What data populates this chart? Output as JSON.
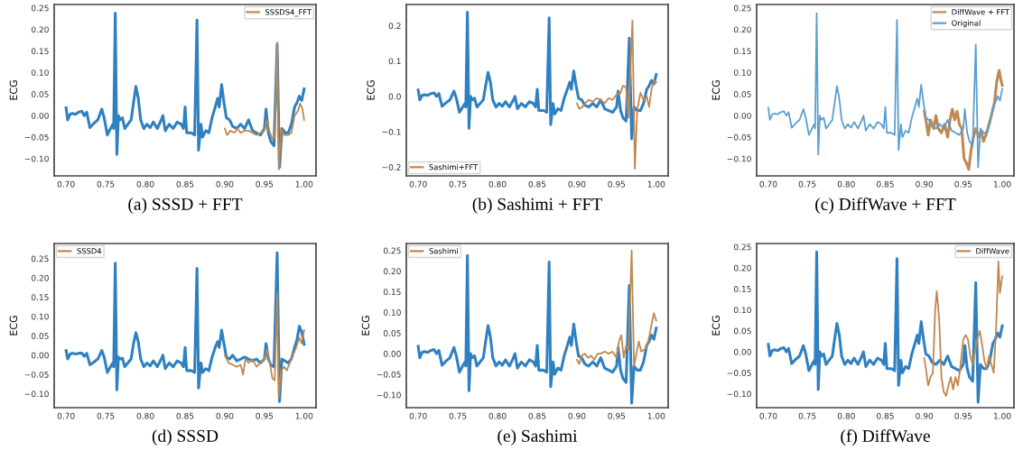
{
  "chart_data": [
    {
      "type": "line",
      "ylabel": "ECG",
      "annotations": [
        "(a) SSSD + FFT"
      ],
      "xlim": [
        0.685,
        1.015
      ],
      "ylim": [
        -0.14,
        0.258
      ],
      "xticks": [
        {
          "value": 0.7,
          "label": "0.70"
        },
        {
          "value": 0.75,
          "label": "0.75"
        },
        {
          "value": 0.8,
          "label": "0.80"
        },
        {
          "value": 0.85,
          "label": "0.85"
        },
        {
          "value": 0.9,
          "label": "0.90"
        },
        {
          "value": 0.95,
          "label": "0.95"
        },
        {
          "value": 1.0,
          "label": "1.00"
        }
      ],
      "yticks": [
        {
          "value": -0.1,
          "label": "−0.10"
        },
        {
          "value": -0.05,
          "label": "−0.05"
        },
        {
          "value": 0.0,
          "label": "0.00"
        },
        {
          "value": 0.05,
          "label": "0.05"
        },
        {
          "value": 0.1,
          "label": "0.10"
        },
        {
          "value": 0.15,
          "label": "0.15"
        },
        {
          "value": 0.2,
          "label": "0.20"
        },
        {
          "value": 0.25,
          "label": "0.25"
        }
      ],
      "grid": false,
      "legend": "top right",
      "series": [
        {
          "color": "#2f80c0",
          "x": [
            0.7,
            0.702,
            0.705,
            0.708,
            0.712,
            0.716,
            0.72,
            0.723,
            0.726,
            0.73,
            0.735,
            0.74,
            0.745,
            0.748,
            0.752,
            0.756,
            0.759,
            0.76,
            0.762,
            0.764,
            0.766,
            0.768,
            0.771,
            0.774,
            0.778,
            0.782,
            0.785,
            0.788,
            0.791,
            0.794,
            0.798,
            0.802,
            0.806,
            0.81,
            0.815,
            0.82,
            0.822,
            0.825,
            0.83,
            0.835,
            0.84,
            0.845,
            0.848,
            0.85,
            0.852,
            0.858,
            0.862,
            0.865,
            0.867,
            0.87,
            0.872,
            0.876,
            0.88,
            0.884,
            0.888,
            0.891,
            0.893,
            0.896,
            0.899,
            0.902,
            0.906,
            0.91,
            0.915,
            0.92,
            0.925,
            0.93,
            0.935,
            0.94,
            0.945,
            0.95,
            0.952,
            0.955,
            0.958,
            0.962,
            0.966,
            0.969,
            0.972,
            0.976,
            0.98,
            0.984,
            0.988,
            0.991,
            0.994,
            0.997,
            1.0
          ],
          "values": [
            0.018,
            -0.01,
            0.003,
            0.005,
            0.003,
            0.008,
            0.01,
            0.0,
            0.008,
            -0.028,
            -0.018,
            -0.01,
            0.015,
            -0.005,
            -0.045,
            -0.03,
            -0.02,
            -0.03,
            0.238,
            -0.09,
            0.0,
            -0.01,
            -0.005,
            -0.03,
            -0.02,
            -0.01,
            0.03,
            0.068,
            0.04,
            -0.01,
            -0.03,
            -0.02,
            -0.028,
            -0.015,
            -0.03,
            -0.01,
            0.0,
            -0.035,
            -0.02,
            -0.03,
            -0.015,
            -0.02,
            -0.03,
            0.02,
            -0.04,
            -0.04,
            -0.045,
            0.222,
            -0.08,
            -0.02,
            -0.05,
            -0.035,
            -0.04,
            -0.005,
            0.02,
            0.04,
            0.02,
            0.072,
            0.03,
            -0.005,
            -0.01,
            -0.025,
            -0.03,
            -0.02,
            -0.03,
            -0.01,
            -0.035,
            -0.04,
            -0.045,
            -0.03,
            0.015,
            -0.04,
            -0.06,
            -0.07,
            0.165,
            -0.12,
            -0.03,
            -0.04,
            -0.04,
            -0.02,
            0.02,
            0.03,
            0.045,
            0.035,
            0.062
          ]
        },
        {
          "name": "SSSDS4_FFT",
          "color": "#c0874e",
          "x": [
            0.9,
            0.903,
            0.907,
            0.912,
            0.916,
            0.92,
            0.925,
            0.93,
            0.935,
            0.94,
            0.945,
            0.95,
            0.953,
            0.956,
            0.96,
            0.963,
            0.966,
            0.968,
            0.971,
            0.975,
            0.98,
            0.984,
            0.988,
            0.992,
            0.995,
            0.998,
            1.0
          ],
          "values": [
            -0.03,
            -0.045,
            -0.035,
            -0.04,
            -0.03,
            -0.04,
            -0.035,
            -0.035,
            -0.04,
            -0.045,
            -0.04,
            -0.035,
            -0.01,
            -0.035,
            -0.055,
            -0.05,
            0.17,
            -0.125,
            -0.03,
            -0.045,
            -0.045,
            -0.04,
            0.0,
            0.01,
            0.028,
            0.015,
            -0.01
          ]
        }
      ]
    },
    {
      "type": "line",
      "ylabel": "ECG",
      "annotations": [
        "(b) Sashimi + FFT"
      ],
      "xlim": [
        0.685,
        1.015
      ],
      "ylim": [
        -0.225,
        0.26
      ],
      "xticks": [
        {
          "value": 0.7,
          "label": "0.70"
        },
        {
          "value": 0.75,
          "label": "0.75"
        },
        {
          "value": 0.8,
          "label": "0.80"
        },
        {
          "value": 0.85,
          "label": "0.85"
        },
        {
          "value": 0.9,
          "label": "0.90"
        },
        {
          "value": 0.95,
          "label": "0.95"
        },
        {
          "value": 1.0,
          "label": "1.00"
        }
      ],
      "yticks": [
        {
          "value": -0.2,
          "label": "−0.2"
        },
        {
          "value": -0.1,
          "label": "−0.1"
        },
        {
          "value": 0.0,
          "label": "0.0"
        },
        {
          "value": 0.1,
          "label": "0.1"
        },
        {
          "value": 0.2,
          "label": "0.2"
        }
      ],
      "grid": false,
      "legend": "bottom left",
      "series": [
        {
          "color": "#2f80c0",
          "x": [
            0.7,
            0.702,
            0.705,
            0.708,
            0.712,
            0.716,
            0.72,
            0.723,
            0.726,
            0.73,
            0.735,
            0.74,
            0.745,
            0.748,
            0.752,
            0.756,
            0.759,
            0.76,
            0.762,
            0.764,
            0.766,
            0.768,
            0.771,
            0.774,
            0.778,
            0.782,
            0.785,
            0.788,
            0.791,
            0.794,
            0.798,
            0.802,
            0.806,
            0.81,
            0.815,
            0.82,
            0.822,
            0.825,
            0.83,
            0.835,
            0.84,
            0.845,
            0.848,
            0.85,
            0.852,
            0.858,
            0.862,
            0.865,
            0.867,
            0.87,
            0.872,
            0.876,
            0.88,
            0.884,
            0.888,
            0.891,
            0.893,
            0.896,
            0.899,
            0.902,
            0.906,
            0.91,
            0.915,
            0.92,
            0.925,
            0.93,
            0.935,
            0.94,
            0.945,
            0.95,
            0.952,
            0.955,
            0.958,
            0.962,
            0.966,
            0.969,
            0.972,
            0.976,
            0.98,
            0.984,
            0.988,
            0.991,
            0.994,
            0.997,
            1.0
          ],
          "values": [
            0.018,
            -0.01,
            0.003,
            0.005,
            0.003,
            0.008,
            0.01,
            0.0,
            0.008,
            -0.028,
            -0.018,
            -0.01,
            0.015,
            -0.005,
            -0.045,
            -0.03,
            -0.02,
            -0.03,
            0.238,
            -0.09,
            0.0,
            -0.01,
            -0.005,
            -0.03,
            -0.02,
            -0.01,
            0.03,
            0.068,
            0.04,
            -0.01,
            -0.03,
            -0.02,
            -0.028,
            -0.015,
            -0.03,
            -0.01,
            0.0,
            -0.035,
            -0.02,
            -0.03,
            -0.015,
            -0.02,
            -0.03,
            0.02,
            -0.04,
            -0.04,
            -0.045,
            0.222,
            -0.08,
            -0.02,
            -0.05,
            -0.035,
            -0.04,
            -0.005,
            0.02,
            0.04,
            0.02,
            0.072,
            0.03,
            -0.005,
            -0.01,
            -0.025,
            -0.03,
            -0.02,
            -0.03,
            -0.01,
            -0.035,
            -0.04,
            -0.045,
            -0.03,
            0.015,
            -0.04,
            -0.06,
            -0.07,
            0.165,
            -0.12,
            -0.03,
            -0.04,
            -0.04,
            -0.02,
            0.02,
            0.03,
            0.045,
            0.035,
            0.062
          ]
        },
        {
          "name": "Sashimi+FFT",
          "color": "#c0874e",
          "x": [
            0.9,
            0.903,
            0.907,
            0.91,
            0.915,
            0.92,
            0.925,
            0.93,
            0.935,
            0.94,
            0.945,
            0.95,
            0.955,
            0.958,
            0.962,
            0.965,
            0.97,
            0.973,
            0.976,
            0.98,
            0.984,
            0.988,
            0.991,
            0.994,
            0.997,
            1.0
          ],
          "values": [
            -0.02,
            -0.035,
            -0.03,
            -0.02,
            -0.01,
            -0.015,
            -0.005,
            -0.01,
            -0.02,
            -0.005,
            -0.01,
            0.005,
            0.01,
            0.03,
            0.025,
            -0.06,
            0.215,
            -0.205,
            -0.04,
            0.01,
            -0.01,
            0.0,
            -0.03,
            0.02,
            0.045,
            0.04
          ]
        }
      ]
    },
    {
      "type": "line",
      "ylabel": "ECG",
      "annotations": [
        "(c) DiffWave + FFT"
      ],
      "xlim": [
        0.685,
        1.015
      ],
      "ylim": [
        -0.14,
        0.258
      ],
      "xticks": [
        {
          "value": 0.7,
          "label": "0.70"
        },
        {
          "value": 0.75,
          "label": "0.75"
        },
        {
          "value": 0.8,
          "label": "0.80"
        },
        {
          "value": 0.85,
          "label": "0.85"
        },
        {
          "value": 0.9,
          "label": "0.90"
        },
        {
          "value": 0.95,
          "label": "0.95"
        },
        {
          "value": 1.0,
          "label": "1.00"
        }
      ],
      "yticks": [
        {
          "value": -0.1,
          "label": "−0.10"
        },
        {
          "value": -0.05,
          "label": "−0.05"
        },
        {
          "value": 0.0,
          "label": "0.00"
        },
        {
          "value": 0.05,
          "label": "0.05"
        },
        {
          "value": 0.1,
          "label": "0.10"
        },
        {
          "value": 0.15,
          "label": "0.15"
        },
        {
          "value": 0.2,
          "label": "0.20"
        },
        {
          "value": 0.25,
          "label": "0.25"
        }
      ],
      "grid": false,
      "legend": "top right",
      "series": [
        {
          "name": "DiffWave + FFT",
          "color": "#c0874e",
          "x": [
            0.9,
            0.903,
            0.905,
            0.908,
            0.912,
            0.915,
            0.918,
            0.922,
            0.926,
            0.93,
            0.933,
            0.936,
            0.939,
            0.942,
            0.945,
            0.948,
            0.951,
            0.954,
            0.957,
            0.96,
            0.963,
            0.966,
            0.97,
            0.973,
            0.976,
            0.98,
            0.983,
            0.986,
            0.99,
            0.993,
            0.996,
            0.998,
            1.0
          ],
          "values": [
            0.01,
            -0.02,
            -0.045,
            -0.01,
            -0.03,
            0.0,
            -0.03,
            -0.04,
            -0.02,
            -0.05,
            -0.01,
            0.015,
            -0.01,
            0.01,
            -0.02,
            -0.03,
            -0.1,
            -0.11,
            -0.125,
            -0.08,
            -0.05,
            -0.03,
            -0.05,
            -0.035,
            -0.06,
            -0.04,
            -0.02,
            0.0,
            0.03,
            0.08,
            0.105,
            0.085,
            0.07
          ]
        },
        {
          "name": "Original",
          "color": "#5a9fd0",
          "x": [
            0.7,
            0.702,
            0.705,
            0.708,
            0.712,
            0.716,
            0.72,
            0.723,
            0.726,
            0.73,
            0.735,
            0.74,
            0.745,
            0.748,
            0.752,
            0.756,
            0.759,
            0.76,
            0.762,
            0.764,
            0.766,
            0.768,
            0.771,
            0.774,
            0.778,
            0.782,
            0.785,
            0.788,
            0.791,
            0.794,
            0.798,
            0.802,
            0.806,
            0.81,
            0.815,
            0.82,
            0.822,
            0.825,
            0.83,
            0.835,
            0.84,
            0.845,
            0.848,
            0.85,
            0.852,
            0.858,
            0.862,
            0.865,
            0.867,
            0.87,
            0.872,
            0.876,
            0.88,
            0.884,
            0.888,
            0.891,
            0.893,
            0.896,
            0.899,
            0.902,
            0.906,
            0.91,
            0.915,
            0.92,
            0.925,
            0.93,
            0.935,
            0.94,
            0.945,
            0.95,
            0.952,
            0.955,
            0.958,
            0.962,
            0.966,
            0.969,
            0.972,
            0.976,
            0.98,
            0.984,
            0.988,
            0.991,
            0.994,
            0.997,
            1.0
          ],
          "values": [
            0.018,
            -0.01,
            0.003,
            0.005,
            0.003,
            0.008,
            0.01,
            0.0,
            0.008,
            -0.028,
            -0.018,
            -0.01,
            0.015,
            -0.005,
            -0.045,
            -0.03,
            -0.02,
            -0.03,
            0.238,
            -0.09,
            0.0,
            -0.01,
            -0.005,
            -0.03,
            -0.02,
            -0.01,
            0.03,
            0.068,
            0.04,
            -0.01,
            -0.03,
            -0.02,
            -0.028,
            -0.015,
            -0.03,
            -0.01,
            0.0,
            -0.035,
            -0.02,
            -0.03,
            -0.015,
            -0.02,
            -0.03,
            0.02,
            -0.04,
            -0.04,
            -0.045,
            0.222,
            -0.08,
            -0.02,
            -0.05,
            -0.035,
            -0.04,
            -0.005,
            0.02,
            0.04,
            0.02,
            0.072,
            0.03,
            -0.005,
            -0.01,
            -0.025,
            -0.03,
            -0.02,
            -0.03,
            -0.01,
            -0.035,
            -0.04,
            -0.045,
            -0.03,
            0.015,
            -0.04,
            -0.06,
            -0.07,
            0.165,
            -0.12,
            -0.03,
            -0.04,
            -0.04,
            -0.02,
            0.02,
            0.03,
            0.045,
            0.035,
            0.062
          ]
        }
      ]
    },
    {
      "type": "line",
      "ylabel": "ECG",
      "annotations": [
        "(d) SSSD"
      ],
      "xlim": [
        0.685,
        1.015
      ],
      "ylim": [
        -0.136,
        0.289
      ],
      "xticks": [
        {
          "value": 0.7,
          "label": "0.70"
        },
        {
          "value": 0.75,
          "label": "0.75"
        },
        {
          "value": 0.8,
          "label": "0.80"
        },
        {
          "value": 0.85,
          "label": "0.85"
        },
        {
          "value": 0.9,
          "label": "0.90"
        },
        {
          "value": 0.95,
          "label": "0.95"
        },
        {
          "value": 1.0,
          "label": "1.00"
        }
      ],
      "yticks": [
        {
          "value": -0.1,
          "label": "−0.10"
        },
        {
          "value": -0.05,
          "label": "−0.05"
        },
        {
          "value": 0.0,
          "label": "0.00"
        },
        {
          "value": 0.05,
          "label": "0.05"
        },
        {
          "value": 0.1,
          "label": "0.10"
        },
        {
          "value": 0.15,
          "label": "0.15"
        },
        {
          "value": 0.2,
          "label": "0.20"
        },
        {
          "value": 0.25,
          "label": "0.25"
        }
      ],
      "grid": false,
      "legend": "top left",
      "series": [
        {
          "color": "#2f80c0",
          "x": [
            0.7,
            0.702,
            0.705,
            0.708,
            0.712,
            0.716,
            0.72,
            0.723,
            0.726,
            0.73,
            0.735,
            0.74,
            0.745,
            0.748,
            0.752,
            0.756,
            0.759,
            0.76,
            0.762,
            0.764,
            0.766,
            0.768,
            0.771,
            0.774,
            0.778,
            0.782,
            0.785,
            0.788,
            0.791,
            0.794,
            0.798,
            0.802,
            0.806,
            0.81,
            0.815,
            0.82,
            0.822,
            0.825,
            0.83,
            0.835,
            0.84,
            0.845,
            0.848,
            0.85,
            0.852,
            0.858,
            0.862,
            0.865,
            0.867,
            0.87,
            0.872,
            0.876,
            0.88,
            0.884,
            0.888,
            0.891,
            0.893,
            0.896,
            0.899,
            0.902,
            0.906,
            0.91,
            0.915,
            0.92,
            0.925,
            0.93,
            0.935,
            0.94,
            0.945,
            0.95,
            0.952,
            0.955,
            0.958,
            0.962,
            0.966,
            0.969,
            0.972,
            0.976,
            0.98,
            0.984,
            0.988,
            0.991,
            0.994,
            0.997,
            1.0
          ],
          "values": [
            0.012,
            -0.01,
            0.003,
            0.005,
            0.003,
            0.005,
            0.005,
            -0.003,
            0.005,
            -0.025,
            -0.018,
            -0.01,
            0.012,
            -0.005,
            -0.045,
            -0.03,
            -0.02,
            -0.03,
            0.238,
            -0.09,
            -0.005,
            -0.01,
            -0.008,
            -0.03,
            -0.02,
            -0.01,
            0.03,
            0.058,
            0.035,
            -0.01,
            -0.03,
            -0.02,
            -0.028,
            -0.015,
            -0.03,
            -0.01,
            0.0,
            -0.035,
            -0.02,
            -0.03,
            -0.015,
            -0.02,
            -0.03,
            0.02,
            -0.04,
            -0.04,
            -0.045,
            0.225,
            -0.085,
            -0.02,
            -0.045,
            -0.035,
            -0.04,
            -0.005,
            0.02,
            0.035,
            0.02,
            0.065,
            0.03,
            -0.005,
            -0.01,
            0.0,
            -0.015,
            -0.01,
            -0.005,
            -0.01,
            -0.015,
            -0.01,
            -0.02,
            -0.01,
            0.03,
            -0.01,
            -0.025,
            -0.03,
            0.265,
            -0.12,
            -0.01,
            -0.015,
            -0.02,
            -0.01,
            0.02,
            0.04,
            0.075,
            0.06,
            0.028
          ]
        },
        {
          "name": "SSSD4",
          "color": "#c0874e",
          "x": [
            0.9,
            0.905,
            0.91,
            0.915,
            0.92,
            0.923,
            0.926,
            0.93,
            0.935,
            0.94,
            0.945,
            0.95,
            0.953,
            0.956,
            0.96,
            0.963,
            0.966,
            0.968,
            0.971,
            0.975,
            0.978,
            0.982,
            0.986,
            0.99,
            0.994,
            0.997,
            1.0
          ],
          "values": [
            0.0,
            -0.02,
            -0.025,
            -0.03,
            -0.025,
            -0.05,
            -0.01,
            -0.02,
            -0.01,
            -0.03,
            -0.02,
            -0.01,
            0.015,
            -0.01,
            -0.06,
            -0.065,
            0.16,
            -0.11,
            -0.04,
            -0.03,
            -0.04,
            -0.02,
            0.0,
            0.02,
            0.045,
            0.03,
            0.065
          ]
        }
      ]
    },
    {
      "type": "line",
      "ylabel": "ECG",
      "annotations": [
        "(e) Sashimi"
      ],
      "xlim": [
        0.685,
        1.015
      ],
      "ylim": [
        -0.131,
        0.267
      ],
      "xticks": [
        {
          "value": 0.7,
          "label": "0.70"
        },
        {
          "value": 0.75,
          "label": "0.75"
        },
        {
          "value": 0.8,
          "label": "0.80"
        },
        {
          "value": 0.85,
          "label": "0.85"
        },
        {
          "value": 0.9,
          "label": "0.90"
        },
        {
          "value": 0.95,
          "label": "0.95"
        },
        {
          "value": 1.0,
          "label": "1.00"
        }
      ],
      "yticks": [
        {
          "value": -0.1,
          "label": "−0.10"
        },
        {
          "value": -0.05,
          "label": "−0.05"
        },
        {
          "value": 0.0,
          "label": "0.00"
        },
        {
          "value": 0.05,
          "label": "0.05"
        },
        {
          "value": 0.1,
          "label": "0.10"
        },
        {
          "value": 0.15,
          "label": "0.15"
        },
        {
          "value": 0.2,
          "label": "0.20"
        },
        {
          "value": 0.25,
          "label": "0.25"
        }
      ],
      "grid": false,
      "legend": "top left",
      "series": [
        {
          "color": "#2f80c0",
          "x": [
            0.7,
            0.702,
            0.705,
            0.708,
            0.712,
            0.716,
            0.72,
            0.723,
            0.726,
            0.73,
            0.735,
            0.74,
            0.745,
            0.748,
            0.752,
            0.756,
            0.759,
            0.76,
            0.762,
            0.764,
            0.766,
            0.768,
            0.771,
            0.774,
            0.778,
            0.782,
            0.785,
            0.788,
            0.791,
            0.794,
            0.798,
            0.802,
            0.806,
            0.81,
            0.815,
            0.82,
            0.822,
            0.825,
            0.83,
            0.835,
            0.84,
            0.845,
            0.848,
            0.85,
            0.852,
            0.858,
            0.862,
            0.865,
            0.867,
            0.87,
            0.872,
            0.876,
            0.88,
            0.884,
            0.888,
            0.891,
            0.893,
            0.896,
            0.899,
            0.902,
            0.906,
            0.91,
            0.915,
            0.92,
            0.925,
            0.93,
            0.935,
            0.94,
            0.945,
            0.95,
            0.952,
            0.955,
            0.958,
            0.962,
            0.966,
            0.969,
            0.972,
            0.976,
            0.98,
            0.984,
            0.988,
            0.991,
            0.994,
            0.997,
            1.0
          ],
          "values": [
            0.018,
            -0.01,
            0.003,
            0.005,
            0.003,
            0.008,
            0.01,
            0.0,
            0.008,
            -0.028,
            -0.018,
            -0.01,
            0.015,
            -0.005,
            -0.045,
            -0.03,
            -0.02,
            -0.03,
            0.238,
            -0.09,
            0.0,
            -0.01,
            -0.005,
            -0.03,
            -0.02,
            -0.01,
            0.03,
            0.068,
            0.04,
            -0.01,
            -0.03,
            -0.02,
            -0.028,
            -0.015,
            -0.03,
            -0.01,
            0.0,
            -0.035,
            -0.02,
            -0.03,
            -0.015,
            -0.02,
            -0.03,
            0.02,
            -0.04,
            -0.04,
            -0.045,
            0.222,
            -0.08,
            -0.02,
            -0.05,
            -0.035,
            -0.04,
            -0.005,
            0.02,
            0.04,
            0.02,
            0.072,
            0.03,
            -0.005,
            -0.01,
            -0.025,
            -0.03,
            -0.02,
            -0.03,
            -0.01,
            -0.035,
            -0.04,
            -0.045,
            -0.03,
            0.015,
            -0.04,
            -0.06,
            -0.07,
            0.165,
            -0.12,
            -0.03,
            -0.04,
            -0.04,
            -0.02,
            0.02,
            0.03,
            0.045,
            0.035,
            0.062
          ]
        },
        {
          "name": "Sashimi",
          "color": "#c0874e",
          "x": [
            0.9,
            0.903,
            0.906,
            0.91,
            0.914,
            0.918,
            0.922,
            0.926,
            0.93,
            0.935,
            0.94,
            0.945,
            0.95,
            0.953,
            0.956,
            0.959,
            0.962,
            0.965,
            0.969,
            0.972,
            0.975,
            0.978,
            0.981,
            0.985,
            0.988,
            0.991,
            0.994,
            0.997,
            1.0
          ],
          "values": [
            -0.015,
            -0.025,
            -0.005,
            0.0,
            -0.01,
            -0.005,
            -0.015,
            0.0,
            0.0,
            0.005,
            0.0,
            0.005,
            -0.01,
            0.03,
            0.045,
            -0.01,
            0.02,
            0.01,
            0.25,
            -0.03,
            0.0,
            0.03,
            0.005,
            0.01,
            0.015,
            0.04,
            0.07,
            0.098,
            0.08
          ]
        }
      ]
    },
    {
      "type": "line",
      "ylabel": "ECG",
      "annotations": [
        "(f) DiffWave"
      ],
      "xlim": [
        0.685,
        1.015
      ],
      "ylim": [
        -0.133,
        0.258
      ],
      "xticks": [
        {
          "value": 0.7,
          "label": "0.70"
        },
        {
          "value": 0.75,
          "label": "0.75"
        },
        {
          "value": 0.8,
          "label": "0.80"
        },
        {
          "value": 0.85,
          "label": "0.85"
        },
        {
          "value": 0.9,
          "label": "0.90"
        },
        {
          "value": 0.95,
          "label": "0.95"
        },
        {
          "value": 1.0,
          "label": "1.00"
        }
      ],
      "yticks": [
        {
          "value": -0.1,
          "label": "−0.10"
        },
        {
          "value": -0.05,
          "label": "−0.05"
        },
        {
          "value": 0.0,
          "label": "0.00"
        },
        {
          "value": 0.05,
          "label": "0.05"
        },
        {
          "value": 0.1,
          "label": "0.10"
        },
        {
          "value": 0.15,
          "label": "0.15"
        },
        {
          "value": 0.2,
          "label": "0.20"
        },
        {
          "value": 0.25,
          "label": "0.25"
        }
      ],
      "grid": false,
      "legend": "top right",
      "series": [
        {
          "color": "#2f80c0",
          "x": [
            0.7,
            0.702,
            0.705,
            0.708,
            0.712,
            0.716,
            0.72,
            0.723,
            0.726,
            0.73,
            0.735,
            0.74,
            0.745,
            0.748,
            0.752,
            0.756,
            0.759,
            0.76,
            0.762,
            0.764,
            0.766,
            0.768,
            0.771,
            0.774,
            0.778,
            0.782,
            0.785,
            0.788,
            0.791,
            0.794,
            0.798,
            0.802,
            0.806,
            0.81,
            0.815,
            0.82,
            0.822,
            0.825,
            0.83,
            0.835,
            0.84,
            0.845,
            0.848,
            0.85,
            0.852,
            0.858,
            0.862,
            0.865,
            0.867,
            0.87,
            0.872,
            0.876,
            0.88,
            0.884,
            0.888,
            0.891,
            0.893,
            0.896,
            0.899,
            0.902,
            0.906,
            0.91,
            0.915,
            0.92,
            0.925,
            0.93,
            0.935,
            0.94,
            0.945,
            0.95,
            0.952,
            0.955,
            0.958,
            0.962,
            0.966,
            0.969,
            0.972,
            0.976,
            0.98,
            0.984,
            0.988,
            0.991,
            0.994,
            0.997,
            1.0
          ],
          "values": [
            0.018,
            -0.01,
            0.003,
            0.005,
            0.003,
            0.008,
            0.01,
            0.0,
            0.008,
            -0.028,
            -0.018,
            -0.01,
            0.015,
            -0.005,
            -0.045,
            -0.03,
            -0.02,
            -0.03,
            0.238,
            -0.09,
            0.0,
            -0.01,
            -0.005,
            -0.03,
            -0.02,
            -0.01,
            0.03,
            0.068,
            0.04,
            -0.01,
            -0.03,
            -0.02,
            -0.028,
            -0.015,
            -0.03,
            -0.01,
            0.0,
            -0.035,
            -0.02,
            -0.03,
            -0.015,
            -0.02,
            -0.03,
            0.02,
            -0.04,
            -0.04,
            -0.045,
            0.222,
            -0.08,
            -0.02,
            -0.05,
            -0.035,
            -0.04,
            -0.005,
            0.02,
            0.04,
            0.02,
            0.072,
            0.03,
            -0.005,
            -0.01,
            -0.025,
            -0.03,
            -0.02,
            -0.03,
            -0.01,
            -0.035,
            -0.04,
            -0.045,
            -0.03,
            0.015,
            -0.04,
            -0.06,
            -0.07,
            0.165,
            -0.12,
            -0.03,
            -0.04,
            -0.04,
            -0.02,
            0.02,
            0.03,
            0.045,
            0.035,
            0.062
          ]
        },
        {
          "name": "DiffWave",
          "color": "#c0874e",
          "x": [
            0.9,
            0.902,
            0.905,
            0.908,
            0.911,
            0.914,
            0.916,
            0.919,
            0.922,
            0.925,
            0.928,
            0.931,
            0.934,
            0.937,
            0.94,
            0.943,
            0.946,
            0.95,
            0.953,
            0.956,
            0.959,
            0.962,
            0.965,
            0.968,
            0.971,
            0.974,
            0.977,
            0.98,
            0.983,
            0.986,
            0.989,
            0.992,
            0.995,
            0.997,
            1.0
          ],
          "values": [
            -0.015,
            -0.04,
            -0.08,
            -0.06,
            -0.05,
            0.1,
            0.145,
            0.08,
            -0.06,
            -0.095,
            -0.105,
            -0.08,
            -0.06,
            -0.09,
            -0.06,
            -0.08,
            -0.04,
            0.03,
            0.04,
            0.03,
            -0.01,
            -0.03,
            0.0,
            0.03,
            0.05,
            0.02,
            -0.02,
            -0.04,
            -0.01,
            -0.03,
            -0.05,
            0.05,
            0.215,
            0.14,
            0.18
          ]
        }
      ]
    }
  ]
}
